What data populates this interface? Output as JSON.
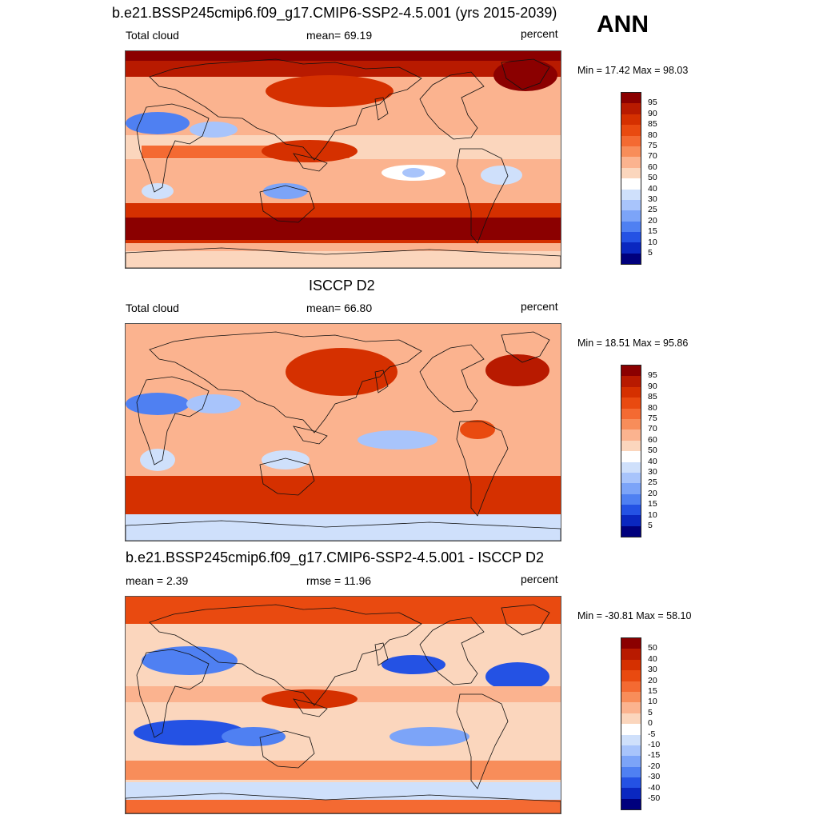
{
  "header": {
    "title": "b.e21.BSSP245cmip6.f09_g17.CMIP6-SSP2-4.5.001 (yrs 2015-2039)",
    "season": "ANN"
  },
  "panels": [
    {
      "id": "model",
      "title": "",
      "left_label": "Total cloud",
      "center_label": "mean=  69.19",
      "right_label": "percent",
      "minmax": "Min =  17.42 Max =  98.03",
      "palette": "abs",
      "levels": [
        "95",
        "90",
        "85",
        "80",
        "75",
        "70",
        "60",
        "50",
        "40",
        "30",
        "25",
        "20",
        "15",
        "10",
        "5"
      ],
      "colors": [
        "#8b0000",
        "#b81a00",
        "#d53000",
        "#e94a10",
        "#f46a32",
        "#f88d5a",
        "#fbb38f",
        "#fbd6bd",
        "#ffffff",
        "#cfe0fb",
        "#a8c4fb",
        "#7ca4f8",
        "#4f80f2",
        "#2452e4",
        "#0a27c0",
        "#00007d"
      ]
    },
    {
      "id": "obs",
      "title": "ISCCP D2",
      "left_label": "Total cloud",
      "center_label": "mean=  66.80",
      "right_label": "percent",
      "minmax": "Min =  18.51 Max =  95.86",
      "palette": "abs",
      "levels": [
        "95",
        "90",
        "85",
        "80",
        "75",
        "70",
        "60",
        "50",
        "40",
        "30",
        "25",
        "20",
        "15",
        "10",
        "5"
      ],
      "colors": [
        "#8b0000",
        "#b81a00",
        "#d53000",
        "#e94a10",
        "#f46a32",
        "#f88d5a",
        "#fbb38f",
        "#fbd6bd",
        "#ffffff",
        "#cfe0fb",
        "#a8c4fb",
        "#7ca4f8",
        "#4f80f2",
        "#2452e4",
        "#0a27c0",
        "#00007d"
      ]
    },
    {
      "id": "diff",
      "title": "b.e21.BSSP245cmip6.f09_g17.CMIP6-SSP2-4.5.001 - ISCCP D2",
      "left_label": "mean =   2.39",
      "center_label": "rmse =  11.96",
      "right_label": "percent",
      "minmax": "Min = -30.81 Max =  58.10",
      "palette": "diff",
      "levels": [
        "50",
        "40",
        "30",
        "20",
        "15",
        "10",
        "5",
        "0",
        "-5",
        "-10",
        "-15",
        "-20",
        "-30",
        "-40",
        "-50"
      ],
      "colors": [
        "#8b0000",
        "#b81a00",
        "#d53000",
        "#e94a10",
        "#f46a32",
        "#f88d5a",
        "#fbb38f",
        "#fbd6bd",
        "#ffffff",
        "#cfe0fb",
        "#a8c4fb",
        "#7ca4f8",
        "#4f80f2",
        "#2452e4",
        "#0a27c0",
        "#00007d"
      ]
    }
  ]
}
